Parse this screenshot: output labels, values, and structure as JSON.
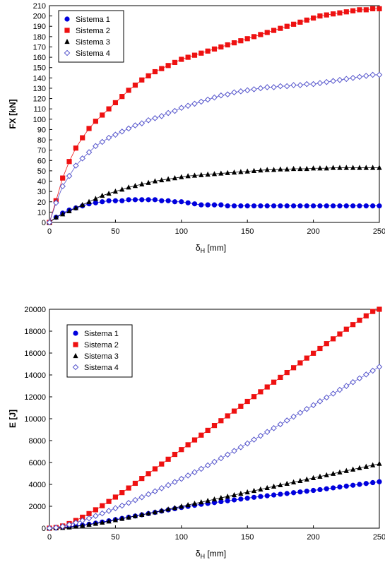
{
  "colors": {
    "series1": "#0000dd",
    "series2": "#ee1111",
    "series3": "#000000",
    "series4": "#5555cc",
    "axis": "#000000"
  },
  "chart_data": [
    {
      "type": "scatter",
      "xlabel_main": "δ",
      "xlabel_sub": "H",
      "xlabel_unit": " [mm]",
      "ylabel": "FX [kN]",
      "xlim": [
        0,
        250
      ],
      "ylim": [
        0,
        210
      ],
      "xticks": [
        0,
        50,
        100,
        150,
        200,
        250
      ],
      "yticks": [
        0,
        10,
        20,
        30,
        40,
        50,
        60,
        70,
        80,
        90,
        100,
        110,
        120,
        130,
        140,
        150,
        160,
        170,
        180,
        190,
        200,
        210
      ],
      "grid": false,
      "legend_position": "top-left",
      "x_step": 5,
      "series": [
        {
          "name": "Sistema 1",
          "marker": "circle",
          "values": [
            0,
            5,
            9,
            12,
            14,
            16,
            18,
            19,
            20,
            21,
            21,
            21,
            22,
            22,
            22,
            22,
            22,
            21,
            21,
            20,
            20,
            19,
            18,
            17,
            17,
            17,
            17,
            16,
            16,
            16,
            16,
            16,
            16,
            16,
            16,
            16,
            16,
            16,
            16,
            16,
            16,
            16,
            16,
            16,
            16,
            16,
            16,
            16,
            16,
            16,
            16
          ]
        },
        {
          "name": "Sistema 2",
          "marker": "square",
          "values": [
            0,
            21,
            43,
            59,
            72,
            82,
            91,
            98,
            104,
            110,
            116,
            122,
            128,
            133,
            138,
            142,
            146,
            149,
            152,
            155,
            158,
            160,
            162,
            164,
            166,
            168,
            170,
            172,
            174,
            176,
            178,
            180,
            182,
            184,
            186,
            188,
            190,
            192,
            194,
            196,
            198,
            200,
            201,
            202,
            203,
            204,
            205,
            206,
            206,
            207,
            207
          ]
        },
        {
          "name": "Sistema 3",
          "marker": "triangle",
          "values": [
            0,
            5,
            8,
            11,
            14,
            17,
            20,
            23,
            26,
            28,
            30,
            32,
            34,
            35.5,
            37,
            38.5,
            40,
            41,
            42,
            43,
            44,
            45,
            45.5,
            46,
            46.5,
            47,
            47.5,
            48,
            48.5,
            49,
            49.5,
            50,
            50.5,
            51,
            51,
            51.5,
            51.5,
            52,
            52,
            52,
            52.5,
            52.5,
            52.5,
            53,
            53,
            53,
            53,
            53,
            53,
            53,
            53
          ]
        },
        {
          "name": "Sistema 4",
          "marker": "diamond",
          "values": [
            0,
            19,
            35,
            45,
            55,
            62,
            68,
            74,
            78,
            82,
            85,
            88,
            91,
            94,
            96,
            99,
            101,
            103,
            106,
            108,
            111,
            113,
            115,
            117,
            119,
            121,
            123,
            124,
            126,
            127,
            128,
            129,
            130,
            131,
            131,
            132,
            132,
            133,
            133,
            134,
            134,
            135,
            136,
            137,
            138,
            139,
            140,
            141,
            142,
            143,
            143
          ]
        }
      ]
    },
    {
      "type": "scatter",
      "xlabel_main": "δ",
      "xlabel_sub": "H",
      "xlabel_unit": " [mm]",
      "ylabel": "E [J]",
      "xlim": [
        0,
        250
      ],
      "ylim": [
        0,
        20000
      ],
      "xticks": [
        0,
        50,
        100,
        150,
        200,
        250
      ],
      "yticks": [
        0,
        2000,
        4000,
        6000,
        8000,
        10000,
        12000,
        14000,
        16000,
        18000,
        20000
      ],
      "grid": false,
      "legend_position": "top-left",
      "x_step": 5,
      "series": [
        {
          "name": "Sistema 1",
          "marker": "circle",
          "values": [
            0,
            15,
            60,
            120,
            190,
            270,
            360,
            460,
            560,
            670,
            780,
            890,
            1000,
            1110,
            1220,
            1330,
            1440,
            1560,
            1670,
            1780,
            1890,
            1990,
            2090,
            2180,
            2260,
            2340,
            2420,
            2500,
            2580,
            2660,
            2740,
            2820,
            2890,
            2960,
            3030,
            3100,
            3170,
            3240,
            3310,
            3380,
            3450,
            3520,
            3600,
            3680,
            3760,
            3840,
            3920,
            4000,
            4080,
            4160,
            4240
          ]
        },
        {
          "name": "Sistema 2",
          "marker": "square",
          "values": [
            0,
            60,
            200,
            420,
            700,
            1000,
            1330,
            1680,
            2050,
            2440,
            2840,
            3250,
            3670,
            4100,
            4540,
            4980,
            5420,
            5860,
            6300,
            6740,
            7180,
            7620,
            8060,
            8500,
            8940,
            9380,
            9820,
            10260,
            10700,
            11140,
            11580,
            12020,
            12460,
            12900,
            13340,
            13780,
            14220,
            14660,
            15100,
            15540,
            15980,
            16420,
            16860,
            17300,
            17740,
            18180,
            18600,
            19000,
            19400,
            19800,
            20000
          ]
        },
        {
          "name": "Sistema 3",
          "marker": "triangle",
          "values": [
            0,
            10,
            40,
            90,
            160,
            240,
            330,
            420,
            520,
            630,
            750,
            870,
            990,
            1110,
            1230,
            1350,
            1470,
            1600,
            1730,
            1860,
            1990,
            2120,
            2250,
            2380,
            2510,
            2640,
            2770,
            2900,
            3030,
            3160,
            3290,
            3420,
            3550,
            3680,
            3810,
            3940,
            4070,
            4200,
            4330,
            4460,
            4590,
            4720,
            4850,
            4980,
            5110,
            5240,
            5370,
            5500,
            5630,
            5760,
            5890
          ]
        },
        {
          "name": "Sistema 4",
          "marker": "diamond",
          "values": [
            0,
            50,
            160,
            320,
            500,
            700,
            900,
            1120,
            1350,
            1580,
            1820,
            2060,
            2310,
            2570,
            2830,
            3100,
            3370,
            3650,
            3930,
            4220,
            4510,
            4810,
            5110,
            5420,
            5740,
            6060,
            6390,
            6720,
            7060,
            7400,
            7740,
            8090,
            8440,
            8790,
            9140,
            9490,
            9840,
            10190,
            10540,
            10890,
            11240,
            11590,
            11940,
            12290,
            12640,
            12990,
            13340,
            13690,
            14040,
            14390,
            14740
          ]
        }
      ]
    }
  ]
}
